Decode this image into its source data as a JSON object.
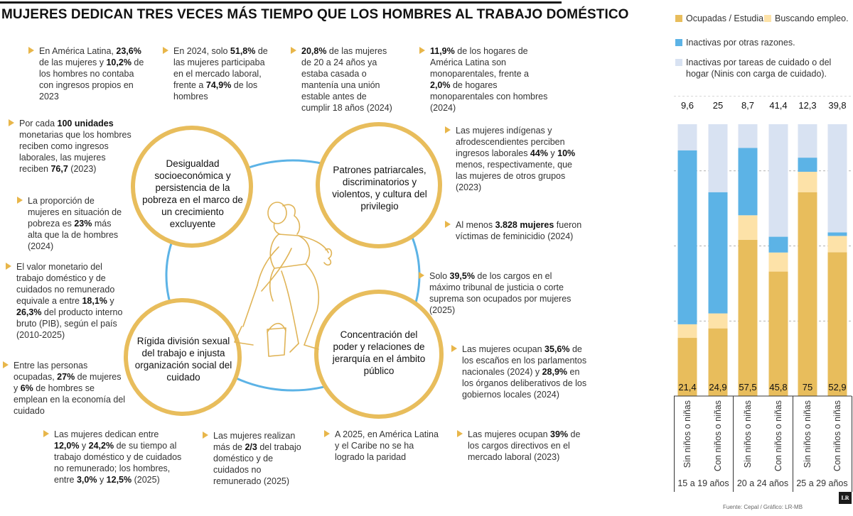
{
  "title": "MUJERES DEDICAN TRES VECES MÁS TIEMPO QUE LOS HOMBRES AL TRABAJO DOMÉSTICO",
  "circles": [
    {
      "text": "Desigualdad socioeconómica y persistencia de la pobreza en el marco de un crecimiento excluyente"
    },
    {
      "text": "Patrones patriarcales, discriminatorios y violentos, y cultura del privilegio"
    },
    {
      "text": "Rígida división sexual del trabajo e injusta organización social del cuidado"
    },
    {
      "text": "Concentración del poder y relaciones de jerarquía en el ámbito público"
    }
  ],
  "facts": [
    {
      "parts": [
        {
          "t": "En América Latina, "
        },
        {
          "t": "23,6%",
          "b": true
        },
        {
          "t": " de las mujeres y "
        },
        {
          "t": "10,2%",
          "b": true
        },
        {
          "t": " de los hombres no contaba con ingresos propios en 2023"
        }
      ]
    },
    {
      "parts": [
        {
          "t": "En 2024, solo "
        },
        {
          "t": "51,8%",
          "b": true
        },
        {
          "t": " de las mujeres participaba en el mercado laboral, frente a "
        },
        {
          "t": "74,9%",
          "b": true
        },
        {
          "t": " de los hombres"
        }
      ]
    },
    {
      "parts": [
        {
          "t": "20,8%",
          "b": true
        },
        {
          "t": " de las mujeres de 20 a 24 años ya estaba casada o mantenía una unión estable antes de cumplir 18 años (2024)"
        }
      ]
    },
    {
      "parts": [
        {
          "t": "11,9%",
          "b": true
        },
        {
          "t": " de los hogares de América Latina son monoparentales, frente a "
        },
        {
          "t": "2,0%",
          "b": true
        },
        {
          "t": " de hogares monoparentales con hombres (2024)"
        }
      ]
    },
    {
      "parts": [
        {
          "t": "Por cada "
        },
        {
          "t": "100 unidades",
          "b": true
        },
        {
          "t": " monetarias que los hombres reciben como ingresos laborales, las mujeres reciben "
        },
        {
          "t": "76,7",
          "b": true
        },
        {
          "t": " (2023)"
        }
      ]
    },
    {
      "parts": [
        {
          "t": "La proporción de mujeres en situación de pobreza es "
        },
        {
          "t": "23%",
          "b": true
        },
        {
          "t": " más alta que la de hombres (2024)"
        }
      ]
    },
    {
      "parts": [
        {
          "t": "El valor monetario del trabajo doméstico y de cuidados no remunerado equivale a entre "
        },
        {
          "t": "18,1%",
          "b": true
        },
        {
          "t": " y "
        },
        {
          "t": "26,3%",
          "b": true
        },
        {
          "t": " del producto interno bruto (PIB), según el país (2010-2025)"
        }
      ]
    },
    {
      "parts": [
        {
          "t": "Entre las personas ocupadas, "
        },
        {
          "t": "27%",
          "b": true
        },
        {
          "t": " de mujeres y "
        },
        {
          "t": "6%",
          "b": true
        },
        {
          "t": " de hombres se emplean en la economía del cuidado"
        }
      ]
    },
    {
      "parts": [
        {
          "t": "Las mujeres indígenas y afrodescendientes perciben ingresos laborales "
        },
        {
          "t": "44%",
          "b": true
        },
        {
          "t": " y "
        },
        {
          "t": "10%",
          "b": true
        },
        {
          "t": " menos, respectivamente, que las mujeres de otros grupos (2023)"
        }
      ]
    },
    {
      "parts": [
        {
          "t": "Al menos "
        },
        {
          "t": "3.828 mujeres",
          "b": true
        },
        {
          "t": " fueron víctimas de feminicidio (2024)"
        }
      ]
    },
    {
      "parts": [
        {
          "t": "Solo "
        },
        {
          "t": "39,5%",
          "b": true
        },
        {
          "t": " de los cargos en el máximo tribunal de justicia o corte suprema son ocupados por mujeres (2025)"
        }
      ]
    },
    {
      "parts": [
        {
          "t": "Las mujeres ocupan "
        },
        {
          "t": "35,6%",
          "b": true
        },
        {
          "t": " de los escaños en los parlamentos nacionales (2024) y "
        },
        {
          "t": "28,9%",
          "b": true
        },
        {
          "t": " en los órganos deliberativos de los gobiernos locales (2024)"
        }
      ]
    },
    {
      "parts": [
        {
          "t": "Las mujeres dedican entre  "
        },
        {
          "t": "12,0%",
          "b": true
        },
        {
          "t": " y "
        },
        {
          "t": "24,2%",
          "b": true
        },
        {
          "t": " de su tiempo al trabajo doméstico y de cuidados no remunerado; los hombres, entre "
        },
        {
          "t": "3,0%",
          "b": true
        },
        {
          "t": " y "
        },
        {
          "t": "12,5%",
          "b": true
        },
        {
          "t": " (2025)"
        }
      ]
    },
    {
      "parts": [
        {
          "t": "Las mujeres realizan más de "
        },
        {
          "t": "2/3",
          "b": true
        },
        {
          "t": " del trabajo doméstico y de cuidados no remunerado (2025)"
        }
      ]
    },
    {
      "parts": [
        {
          "t": "A 2025, en América Latina y el Caribe no se ha logrado la paridad"
        }
      ]
    },
    {
      "parts": [
        {
          "t": "Las mujeres ocupan "
        },
        {
          "t": "39%",
          "b": true
        },
        {
          "t": " de los cargos directivos en el mercado laboral (2023)"
        }
      ]
    }
  ],
  "legend": [
    {
      "label": "Ocupadas / Estudian.",
      "color": "#e8bd5c"
    },
    {
      "label": "Buscando empleo.",
      "color": "#fde2a8"
    },
    {
      "label": "Inactivas por otras razones.",
      "color": "#5cb3e6"
    },
    {
      "label": "Inactivas por tareas de cuidado o del hogar (Ninis con carga de cuidado).",
      "color": "#d8e2f2"
    }
  ],
  "chart_data": {
    "type": "bar",
    "stacked": true,
    "ylim": [
      0,
      100
    ],
    "grid": true,
    "categories": [
      "Sin niños o niñas",
      "Con niños o niñas",
      "Sin niños o niñas",
      "Con niños o niñas",
      "Sin niños o niñas",
      "Con niños o niñas"
    ],
    "groups": [
      {
        "label": "15 a 19 años",
        "indices": [
          0,
          1
        ]
      },
      {
        "label": "20 a 24 años",
        "indices": [
          2,
          3
        ]
      },
      {
        "label": "25 a 29 años",
        "indices": [
          4,
          5
        ]
      }
    ],
    "series": [
      {
        "name": "Ocupadas / Estudian.",
        "color": "#e8bd5c",
        "values": [
          21.4,
          24.9,
          57.5,
          45.8,
          75,
          52.9
        ],
        "labels": [
          "21,4",
          "24,9",
          "57,5",
          "45,8",
          "75",
          "52,9"
        ]
      },
      {
        "name": "Buscando empleo.",
        "color": "#fde2a8",
        "values": [
          5.0,
          5.5,
          9.0,
          7.0,
          7.5,
          6.0
        ]
      },
      {
        "name": "Inactivas por otras razones.",
        "color": "#5cb3e6",
        "values": [
          64.0,
          44.6,
          24.8,
          5.8,
          5.2,
          1.3
        ]
      },
      {
        "name": "Inactivas por tareas de cuidado o del hogar (Ninis con carga de cuidado).",
        "color": "#d8e2f2",
        "values": [
          9.6,
          25,
          8.7,
          41.4,
          12.3,
          39.8
        ],
        "labels": [
          "9,6",
          "25",
          "8,7",
          "41,4",
          "12,3",
          "39,8"
        ]
      }
    ]
  },
  "source": "Fuente: Cepal / Gráfico: LR-MB",
  "logo": "LR"
}
